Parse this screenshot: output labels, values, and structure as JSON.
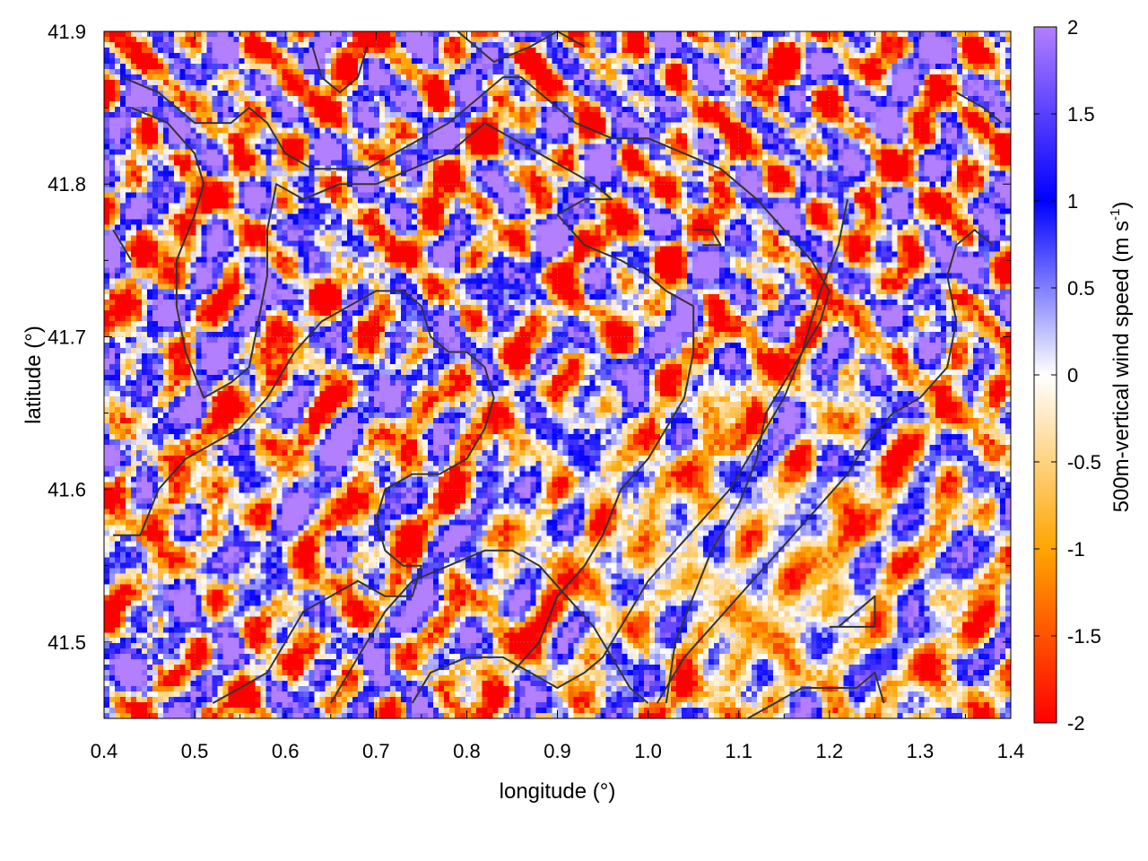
{
  "chart_data": {
    "type": "heatmap",
    "title": "",
    "xlabel": "longitude (°)",
    "ylabel": "latitude (°)",
    "colorbar_label_main": "500m-vertical wind speed (m s",
    "colorbar_label_sup": "-1",
    "colorbar_label_end": ")",
    "xlim": [
      0.4,
      1.4
    ],
    "ylim": [
      41.45,
      41.9
    ],
    "x_ticks": [
      0.4,
      0.5,
      0.6,
      0.7,
      0.8,
      0.9,
      1.0,
      1.1,
      1.2,
      1.3,
      1.4
    ],
    "x_tick_labels": [
      "0.4",
      "0.5",
      "0.6",
      "0.7",
      "0.8",
      "0.9",
      "1.0",
      "1.1",
      "1.2",
      "1.3",
      "1.4"
    ],
    "y_ticks": [
      41.5,
      41.6,
      41.7,
      41.8,
      41.9
    ],
    "y_tick_labels": [
      "41.5",
      "41.6",
      "41.7",
      "41.8",
      "41.9"
    ],
    "colorbar_range": [
      -2,
      2
    ],
    "colorbar_ticks": [
      2,
      1.5,
      1,
      0.5,
      0,
      -0.5,
      -1,
      -1.5,
      -2
    ],
    "colorbar_tick_labels": [
      "2",
      "1.5",
      "1",
      "0.5",
      "0",
      "-0.5",
      "-1",
      "-1.5",
      "-2"
    ],
    "colormap": [
      {
        "value": -2,
        "color": "#ff0000"
      },
      {
        "value": -1,
        "color": "#ffa500"
      },
      {
        "value": 0,
        "color": "#ffffff"
      },
      {
        "value": 1,
        "color": "#0000ff"
      },
      {
        "value": 2,
        "color": "#b27fff"
      }
    ],
    "grid": true,
    "contours": [
      {
        "points": [
          [
            0.42,
            41.87
          ],
          [
            0.46,
            41.86
          ],
          [
            0.5,
            41.84
          ],
          [
            0.54,
            41.84
          ],
          [
            0.56,
            41.85
          ],
          [
            0.58,
            41.84
          ],
          [
            0.6,
            41.82
          ],
          [
            0.63,
            41.81
          ],
          [
            0.66,
            41.81
          ],
          [
            0.69,
            41.81
          ],
          [
            0.72,
            41.82
          ],
          [
            0.75,
            41.83
          ],
          [
            0.78,
            41.84
          ],
          [
            0.8,
            41.85
          ],
          [
            0.82,
            41.86
          ],
          [
            0.84,
            41.87
          ],
          [
            0.86,
            41.87
          ],
          [
            0.88,
            41.86
          ],
          [
            0.9,
            41.85
          ],
          [
            0.92,
            41.84
          ],
          [
            0.96,
            41.83
          ],
          [
            1.0,
            41.83
          ],
          [
            1.04,
            41.82
          ],
          [
            1.08,
            41.81
          ],
          [
            1.12,
            41.79
          ],
          [
            1.15,
            41.77
          ],
          [
            1.18,
            41.75
          ],
          [
            1.2,
            41.73
          ],
          [
            1.19,
            41.71
          ],
          [
            1.17,
            41.69
          ],
          [
            1.15,
            41.67
          ],
          [
            1.13,
            41.65
          ],
          [
            1.12,
            41.62
          ],
          [
            1.1,
            41.59
          ],
          [
            1.07,
            41.56
          ],
          [
            1.05,
            41.53
          ],
          [
            1.03,
            41.5
          ],
          [
            1.02,
            41.46
          ]
        ]
      },
      {
        "points": [
          [
            0.43,
            41.85
          ],
          [
            0.47,
            41.84
          ],
          [
            0.5,
            41.82
          ],
          [
            0.51,
            41.8
          ],
          [
            0.5,
            41.78
          ],
          [
            0.48,
            41.75
          ],
          [
            0.48,
            41.72
          ],
          [
            0.49,
            41.69
          ],
          [
            0.51,
            41.66
          ],
          [
            0.54,
            41.67
          ],
          [
            0.56,
            41.68
          ],
          [
            0.57,
            41.71
          ],
          [
            0.58,
            41.74
          ],
          [
            0.58,
            41.77
          ],
          [
            0.59,
            41.8
          ],
          [
            0.62,
            41.79
          ],
          [
            0.66,
            41.8
          ],
          [
            0.7,
            41.8
          ],
          [
            0.74,
            41.81
          ],
          [
            0.78,
            41.82
          ],
          [
            0.82,
            41.84
          ],
          [
            0.85,
            41.83
          ],
          [
            0.88,
            41.82
          ],
          [
            0.91,
            41.81
          ],
          [
            0.94,
            41.8
          ],
          [
            0.96,
            41.79
          ],
          [
            0.93,
            41.79
          ],
          [
            0.9,
            41.78
          ],
          [
            0.93,
            41.76
          ],
          [
            0.97,
            41.75
          ],
          [
            1.0,
            41.74
          ],
          [
            1.02,
            41.73
          ],
          [
            1.05,
            41.72
          ],
          [
            1.05,
            41.69
          ],
          [
            1.04,
            41.66
          ],
          [
            1.02,
            41.64
          ],
          [
            1.0,
            41.62
          ],
          [
            0.97,
            41.6
          ],
          [
            0.95,
            41.57
          ],
          [
            0.93,
            41.55
          ],
          [
            0.9,
            41.53
          ],
          [
            0.88,
            41.5
          ],
          [
            0.85,
            41.48
          ]
        ]
      },
      {
        "points": [
          [
            0.41,
            41.57
          ],
          [
            0.44,
            41.57
          ],
          [
            0.46,
            41.6
          ],
          [
            0.49,
            41.62
          ],
          [
            0.52,
            41.63
          ],
          [
            0.55,
            41.64
          ],
          [
            0.58,
            41.66
          ],
          [
            0.61,
            41.69
          ],
          [
            0.64,
            41.71
          ],
          [
            0.67,
            41.72
          ],
          [
            0.7,
            41.73
          ],
          [
            0.73,
            41.73
          ],
          [
            0.75,
            41.72
          ],
          [
            0.76,
            41.7
          ],
          [
            0.78,
            41.69
          ],
          [
            0.8,
            41.69
          ],
          [
            0.82,
            41.68
          ],
          [
            0.83,
            41.66
          ],
          [
            0.82,
            41.64
          ],
          [
            0.8,
            41.62
          ],
          [
            0.77,
            41.61
          ],
          [
            0.74,
            41.61
          ],
          [
            0.71,
            41.6
          ],
          [
            0.7,
            41.58
          ],
          [
            0.71,
            41.56
          ],
          [
            0.73,
            41.55
          ],
          [
            0.75,
            41.55
          ],
          [
            0.74,
            41.53
          ],
          [
            0.71,
            41.53
          ],
          [
            0.68,
            41.54
          ],
          [
            0.65,
            41.53
          ],
          [
            0.62,
            41.52
          ],
          [
            0.6,
            41.5
          ],
          [
            0.58,
            41.48
          ],
          [
            0.55,
            41.47
          ],
          [
            0.52,
            41.46
          ]
        ]
      },
      {
        "points": [
          [
            0.65,
            41.46
          ],
          [
            0.68,
            41.49
          ],
          [
            0.71,
            41.52
          ],
          [
            0.74,
            41.54
          ],
          [
            0.78,
            41.55
          ],
          [
            0.82,
            41.56
          ],
          [
            0.85,
            41.56
          ],
          [
            0.88,
            41.55
          ],
          [
            0.91,
            41.53
          ],
          [
            0.94,
            41.51
          ],
          [
            0.96,
            41.49
          ],
          [
            0.98,
            41.47
          ],
          [
            1.0,
            41.46
          ]
        ]
      },
      {
        "points": [
          [
            0.74,
            41.46
          ],
          [
            0.76,
            41.48
          ],
          [
            0.8,
            41.49
          ],
          [
            0.84,
            41.49
          ],
          [
            0.87,
            41.48
          ],
          [
            0.9,
            41.47
          ],
          [
            0.93,
            41.48
          ],
          [
            0.95,
            41.49
          ],
          [
            0.97,
            41.51
          ],
          [
            1.0,
            41.54
          ],
          [
            1.03,
            41.56
          ],
          [
            1.06,
            41.58
          ],
          [
            1.09,
            41.6
          ],
          [
            1.12,
            41.63
          ],
          [
            1.15,
            41.66
          ],
          [
            1.17,
            41.69
          ],
          [
            1.19,
            41.73
          ],
          [
            1.21,
            41.76
          ],
          [
            1.22,
            41.79
          ]
        ]
      },
      {
        "points": [
          [
            1.01,
            41.46
          ],
          [
            1.04,
            41.49
          ],
          [
            1.07,
            41.51
          ],
          [
            1.1,
            41.53
          ],
          [
            1.13,
            41.55
          ],
          [
            1.16,
            41.57
          ],
          [
            1.19,
            41.59
          ],
          [
            1.22,
            41.61
          ],
          [
            1.24,
            41.63
          ],
          [
            1.27,
            41.65
          ],
          [
            1.3,
            41.66
          ],
          [
            1.33,
            41.68
          ],
          [
            1.34,
            41.71
          ],
          [
            1.33,
            41.74
          ],
          [
            1.34,
            41.76
          ],
          [
            1.36,
            41.77
          ],
          [
            1.38,
            41.76
          ]
        ]
      },
      {
        "points": [
          [
            1.11,
            41.45
          ],
          [
            1.14,
            41.46
          ],
          [
            1.17,
            41.47
          ],
          [
            1.2,
            41.47
          ],
          [
            1.23,
            41.47
          ],
          [
            1.25,
            41.48
          ],
          [
            1.26,
            41.46
          ]
        ]
      },
      {
        "points": [
          [
            1.2,
            41.51
          ],
          [
            1.22,
            41.51
          ],
          [
            1.25,
            41.51
          ],
          [
            1.25,
            41.53
          ],
          [
            1.23,
            41.52
          ],
          [
            1.21,
            41.51
          ]
        ]
      },
      {
        "points": [
          [
            0.63,
            41.89
          ],
          [
            0.64,
            41.87
          ],
          [
            0.66,
            41.86
          ],
          [
            0.68,
            41.87
          ],
          [
            0.69,
            41.89
          ]
        ]
      },
      {
        "points": [
          [
            0.79,
            41.9
          ],
          [
            0.83,
            41.88
          ],
          [
            0.87,
            41.89
          ],
          [
            0.9,
            41.9
          ],
          [
            0.93,
            41.89
          ]
        ]
      },
      {
        "points": [
          [
            1.34,
            41.86
          ],
          [
            1.37,
            41.85
          ],
          [
            1.39,
            41.84
          ]
        ]
      },
      {
        "points": [
          [
            1.05,
            41.77
          ],
          [
            1.07,
            41.77
          ],
          [
            1.08,
            41.76
          ],
          [
            1.06,
            41.76
          ]
        ]
      },
      {
        "points": [
          [
            0.41,
            41.77
          ],
          [
            0.42,
            41.76
          ],
          [
            0.43,
            41.75
          ]
        ]
      }
    ]
  }
}
